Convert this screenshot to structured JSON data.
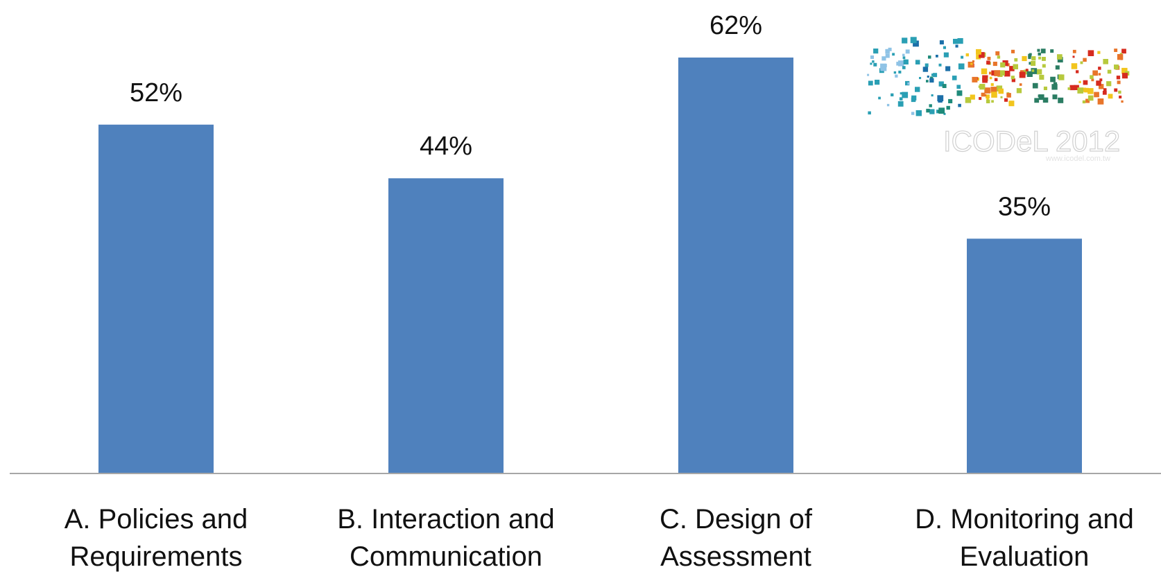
{
  "chart_data": {
    "type": "bar",
    "categories": [
      [
        "A. Policies and",
        "Requirements"
      ],
      [
        "B. Interaction and",
        "Communication"
      ],
      [
        "C. Design of",
        "Assessment"
      ],
      [
        "D. Monitoring and",
        "Evaluation"
      ]
    ],
    "values": [
      52,
      44,
      62,
      35
    ],
    "value_labels": [
      "52%",
      "44%",
      "62%",
      "35%"
    ],
    "unit": "%",
    "ylim": [
      0,
      70
    ],
    "grid": false,
    "bar_color": "#4f81bd",
    "axis_color": "#a6a6a6"
  },
  "logo": {
    "text": "ICODeL 2012",
    "subtext": "www.icodel.com.tw",
    "colors": [
      "#8fc3e6",
      "#2a9fb4",
      "#1f8a7a",
      "#1c6fa8",
      "#d62b1f",
      "#e8752a",
      "#f2c51d",
      "#b7c93d",
      "#2b7d63"
    ]
  }
}
